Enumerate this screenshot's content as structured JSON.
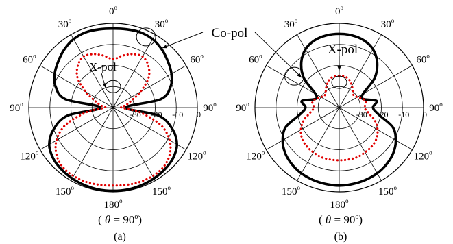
{
  "chart_data": [
    {
      "type": "polar",
      "panel_label": "(a)",
      "caption_prefix": "( ",
      "caption_theta": "θ",
      "caption_eq": " = 90",
      "caption_deg": "o",
      "caption_suffix": ")",
      "angle_labels": [
        {
          "deg": 0,
          "text": "0"
        },
        {
          "deg": 30,
          "text": "30"
        },
        {
          "deg": 60,
          "text": "60"
        },
        {
          "deg": 90,
          "text": "90"
        },
        {
          "deg": 120,
          "text": "120"
        },
        {
          "deg": 150,
          "text": "150"
        },
        {
          "deg": 180,
          "text": "180"
        },
        {
          "deg": 210,
          "text": "150"
        },
        {
          "deg": 240,
          "text": "120"
        },
        {
          "deg": 270,
          "text": "90"
        },
        {
          "deg": 300,
          "text": "60"
        },
        {
          "deg": 330,
          "text": "30"
        }
      ],
      "degree_symbol": "o",
      "radial_ticks": [
        "-30",
        "-20",
        "-10",
        "0"
      ],
      "rlim": [
        -40,
        0
      ],
      "series": [
        {
          "name": "Co-pol",
          "color": "#000000",
          "style": "solid",
          "theta": [
            0,
            10,
            20,
            30,
            40,
            50,
            60,
            70,
            80,
            90,
            100,
            110,
            120,
            130,
            140,
            150,
            160,
            170,
            180,
            190,
            200,
            210,
            220,
            230,
            240,
            250,
            260,
            270,
            280,
            290,
            300,
            310,
            320,
            330,
            340,
            350
          ],
          "r": [
            -2.5,
            -2.3,
            -2.0,
            -2.5,
            -4.0,
            -6.0,
            -8.0,
            -11.0,
            -17.0,
            -34.0,
            -18.0,
            -10.0,
            -5.0,
            -2.8,
            -1.8,
            -1.2,
            -0.8,
            -0.5,
            -0.5,
            -0.5,
            -0.8,
            -1.2,
            -1.8,
            -2.8,
            -5.0,
            -10.0,
            -18.0,
            -34.0,
            -17.0,
            -11.0,
            -8.0,
            -6.0,
            -4.0,
            -2.5,
            -2.0,
            -2.3
          ]
        },
        {
          "name": "X-pol",
          "color": "#e00000",
          "style": "dotted",
          "theta": [
            0,
            10,
            20,
            30,
            40,
            50,
            60,
            70,
            80,
            90,
            100,
            110,
            120,
            130,
            140,
            150,
            160,
            170,
            180,
            190,
            200,
            210,
            220,
            230,
            240,
            250,
            260,
            270,
            280,
            290,
            300,
            310,
            320,
            330,
            340,
            350
          ],
          "r": [
            -17.0,
            -15.0,
            -13.0,
            -12.0,
            -14.0,
            -18.0,
            -25.0,
            -31.0,
            -34.0,
            -36.0,
            -27.0,
            -16.0,
            -9.0,
            -5.0,
            -3.0,
            -2.5,
            -2.5,
            -2.8,
            -3.0,
            -2.8,
            -2.5,
            -2.5,
            -3.0,
            -5.0,
            -9.0,
            -16.0,
            -27.0,
            -36.0,
            -34.0,
            -31.0,
            -25.0,
            -18.0,
            -14.0,
            -12.0,
            -13.0,
            -15.0
          ]
        }
      ],
      "annotations": [
        {
          "text": "X-pol",
          "target_deg": 0,
          "target_r": -30
        },
        {
          "text": "Co-pol",
          "target_deg": 25,
          "target_r": -3
        }
      ]
    },
    {
      "type": "polar",
      "panel_label": "(b)",
      "caption_prefix": "( ",
      "caption_theta": "θ",
      "caption_eq": " = 90",
      "caption_deg": "o",
      "caption_suffix": ")",
      "angle_labels": [
        {
          "deg": 0,
          "text": "0"
        },
        {
          "deg": 30,
          "text": "30"
        },
        {
          "deg": 60,
          "text": "60"
        },
        {
          "deg": 90,
          "text": "90"
        },
        {
          "deg": 120,
          "text": "120"
        },
        {
          "deg": 150,
          "text": "150"
        },
        {
          "deg": 180,
          "text": "180"
        },
        {
          "deg": 210,
          "text": "150"
        },
        {
          "deg": 240,
          "text": "120"
        },
        {
          "deg": 270,
          "text": "90"
        },
        {
          "deg": 300,
          "text": "60"
        },
        {
          "deg": 330,
          "text": "30"
        }
      ],
      "degree_symbol": "o",
      "radial_ticks": [
        "-30",
        "-20",
        "-10",
        "0"
      ],
      "rlim": [
        -40,
        0
      ],
      "series": [
        {
          "name": "Co-pol",
          "color": "#000000",
          "style": "solid",
          "theta": [
            0,
            10,
            20,
            30,
            40,
            50,
            60,
            70,
            80,
            90,
            100,
            110,
            120,
            130,
            140,
            150,
            160,
            170,
            180,
            190,
            200,
            210,
            220,
            230,
            240,
            250,
            260,
            270,
            280,
            290,
            300,
            310,
            320,
            330,
            340,
            350
          ],
          "r": [
            -5.0,
            -5.2,
            -6.0,
            -8.0,
            -12.0,
            -18.0,
            -27.0,
            -28.0,
            -22.0,
            -24.0,
            -21.0,
            -13.0,
            -9.0,
            -6.5,
            -5.0,
            -4.0,
            -3.5,
            -3.2,
            -3.0,
            -3.2,
            -3.5,
            -4.0,
            -5.0,
            -6.5,
            -9.0,
            -13.0,
            -21.0,
            -24.0,
            -22.0,
            -28.0,
            -27.0,
            -18.0,
            -12.0,
            -8.0,
            -6.0,
            -5.2
          ]
        },
        {
          "name": "X-pol",
          "color": "#e00000",
          "style": "dotted",
          "theta": [
            0,
            10,
            20,
            30,
            40,
            50,
            60,
            70,
            80,
            90,
            100,
            110,
            120,
            130,
            140,
            150,
            160,
            170,
            180,
            190,
            200,
            210,
            220,
            230,
            240,
            250,
            260,
            270,
            280,
            290,
            300,
            310,
            320,
            330,
            340,
            350
          ],
          "r": [
            -25.0,
            -25.0,
            -26.0,
            -28.0,
            -30.0,
            -31.0,
            -30.0,
            -28.0,
            -27.0,
            -28.0,
            -26.0,
            -22.0,
            -19.0,
            -17.0,
            -16.0,
            -15.5,
            -15.0,
            -15.0,
            -15.0,
            -15.0,
            -15.0,
            -15.5,
            -16.0,
            -17.0,
            -19.0,
            -22.0,
            -26.0,
            -28.0,
            -27.0,
            -28.0,
            -30.0,
            -31.0,
            -30.0,
            -28.0,
            -26.0,
            -25.0
          ]
        }
      ],
      "annotations": [
        {
          "text": "X-pol",
          "target_deg": 0,
          "target_r": -28
        },
        {
          "text": "Co-pol",
          "target_deg": 305,
          "target_r": -14
        }
      ]
    }
  ]
}
